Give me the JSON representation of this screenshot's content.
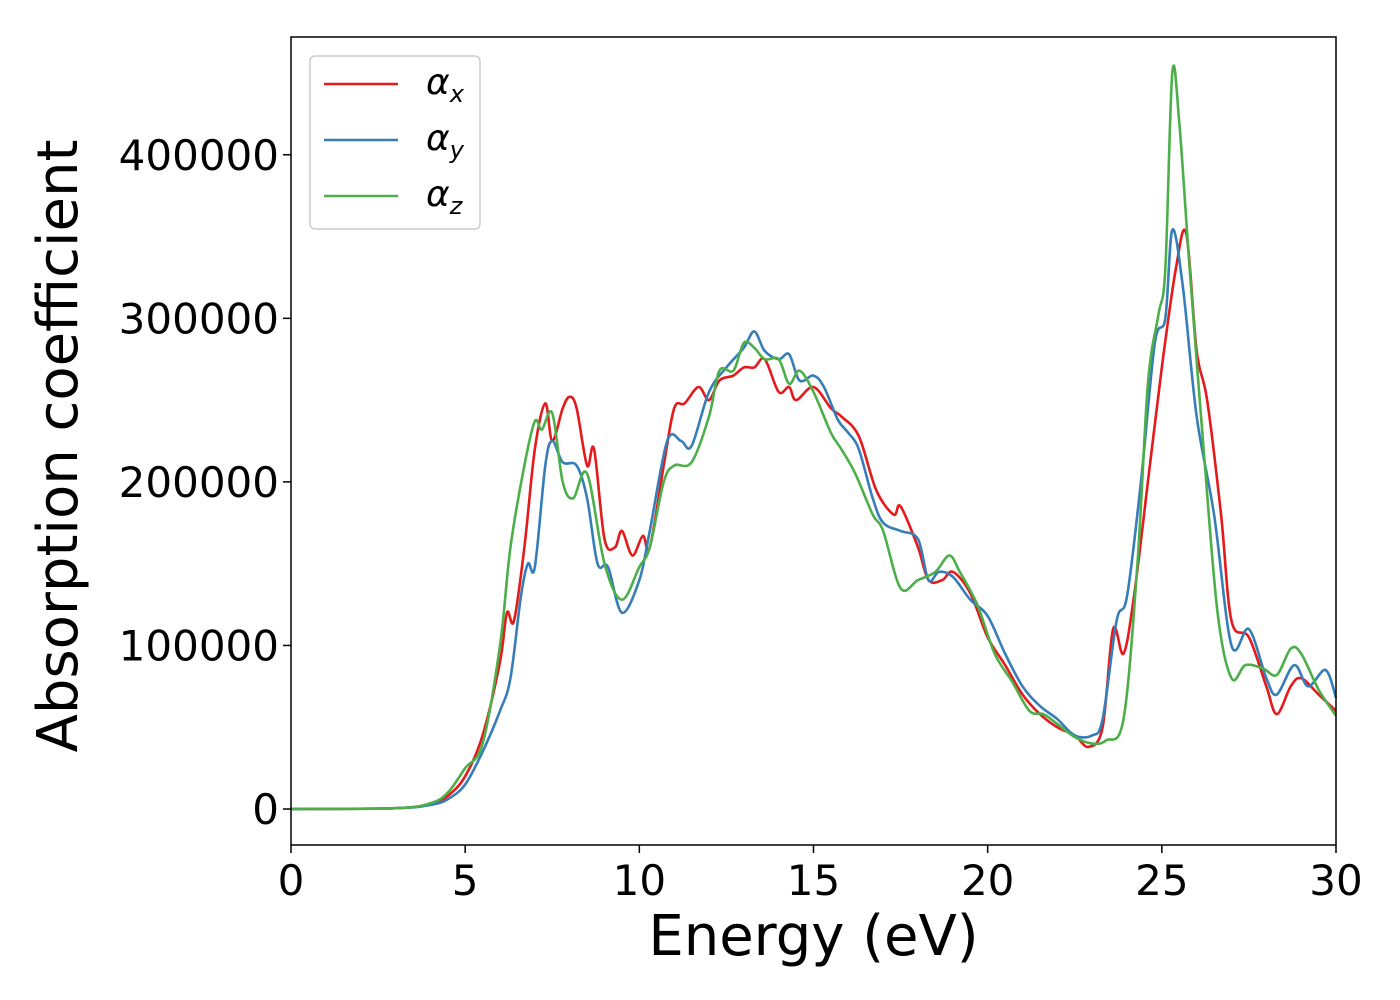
{
  "chart_data": {
    "type": "line",
    "title": "",
    "xlabel": "Energy (eV)",
    "ylabel": "Absorption coefficient",
    "xlim": [
      0,
      30
    ],
    "ylim": [
      -22000,
      472000
    ],
    "xticks": [
      0,
      5,
      10,
      15,
      20,
      25,
      30
    ],
    "xtick_labels": [
      "0",
      "5",
      "10",
      "15",
      "20",
      "25",
      "30"
    ],
    "yticks": [
      0,
      100000,
      200000,
      300000,
      400000
    ],
    "ytick_labels": [
      "0",
      "100000",
      "200000",
      "300000",
      "400000"
    ],
    "grid": false,
    "legend_position": "upper-left",
    "series": [
      {
        "name": "α",
        "subscript": "x",
        "color": "#e41a1c",
        "points": [
          [
            0,
            0
          ],
          [
            3,
            500
          ],
          [
            4,
            3000
          ],
          [
            4.5,
            8000
          ],
          [
            5,
            20000
          ],
          [
            5.5,
            45000
          ],
          [
            6,
            90000
          ],
          [
            6.2,
            120000
          ],
          [
            6.4,
            115000
          ],
          [
            6.7,
            160000
          ],
          [
            7,
            220000
          ],
          [
            7.3,
            248000
          ],
          [
            7.5,
            225000
          ],
          [
            7.8,
            245000
          ],
          [
            8,
            252000
          ],
          [
            8.2,
            245000
          ],
          [
            8.5,
            210000
          ],
          [
            8.7,
            220000
          ],
          [
            9,
            165000
          ],
          [
            9.3,
            160000
          ],
          [
            9.5,
            170000
          ],
          [
            9.8,
            155000
          ],
          [
            10.1,
            167000
          ],
          [
            10.3,
            160000
          ],
          [
            10.7,
            210000
          ],
          [
            11,
            245000
          ],
          [
            11.3,
            248000
          ],
          [
            11.7,
            258000
          ],
          [
            12,
            250000
          ],
          [
            12.3,
            262000
          ],
          [
            12.7,
            265000
          ],
          [
            13,
            270000
          ],
          [
            13.3,
            270000
          ],
          [
            13.6,
            275000
          ],
          [
            14,
            255000
          ],
          [
            14.3,
            258000
          ],
          [
            14.5,
            250000
          ],
          [
            15,
            258000
          ],
          [
            15.5,
            245000
          ],
          [
            15.8,
            240000
          ],
          [
            16.3,
            228000
          ],
          [
            16.8,
            195000
          ],
          [
            17.3,
            180000
          ],
          [
            17.5,
            185000
          ],
          [
            18,
            160000
          ],
          [
            18.3,
            140000
          ],
          [
            18.7,
            140000
          ],
          [
            19,
            145000
          ],
          [
            19.5,
            132000
          ],
          [
            20,
            105000
          ],
          [
            20.5,
            88000
          ],
          [
            21,
            70000
          ],
          [
            21.5,
            58000
          ],
          [
            22,
            50000
          ],
          [
            22.5,
            45000
          ],
          [
            22.9,
            38000
          ],
          [
            23.3,
            50000
          ],
          [
            23.6,
            110000
          ],
          [
            23.9,
            95000
          ],
          [
            24.2,
            130000
          ],
          [
            24.6,
            200000
          ],
          [
            25,
            270000
          ],
          [
            25.4,
            330000
          ],
          [
            25.7,
            352000
          ],
          [
            26,
            280000
          ],
          [
            26.3,
            250000
          ],
          [
            26.7,
            180000
          ],
          [
            27,
            115000
          ],
          [
            27.5,
            105000
          ],
          [
            28,
            75000
          ],
          [
            28.3,
            58000
          ],
          [
            28.7,
            75000
          ],
          [
            29,
            80000
          ],
          [
            29.5,
            70000
          ],
          [
            30,
            60000
          ]
        ]
      },
      {
        "name": "α",
        "subscript": "y",
        "color": "#377eb8",
        "points": [
          [
            0,
            0
          ],
          [
            3,
            500
          ],
          [
            4,
            2500
          ],
          [
            4.5,
            6000
          ],
          [
            5,
            15000
          ],
          [
            5.5,
            35000
          ],
          [
            6,
            60000
          ],
          [
            6.3,
            80000
          ],
          [
            6.6,
            130000
          ],
          [
            6.8,
            150000
          ],
          [
            7,
            148000
          ],
          [
            7.3,
            210000
          ],
          [
            7.5,
            225000
          ],
          [
            7.8,
            212000
          ],
          [
            8.2,
            210000
          ],
          [
            8.5,
            190000
          ],
          [
            8.8,
            150000
          ],
          [
            9.1,
            148000
          ],
          [
            9.5,
            120000
          ],
          [
            10,
            140000
          ],
          [
            10.3,
            170000
          ],
          [
            10.8,
            225000
          ],
          [
            11.2,
            225000
          ],
          [
            11.5,
            222000
          ],
          [
            12,
            255000
          ],
          [
            12.5,
            270000
          ],
          [
            13,
            282000
          ],
          [
            13.3,
            292000
          ],
          [
            13.6,
            280000
          ],
          [
            14,
            275000
          ],
          [
            14.3,
            278000
          ],
          [
            14.6,
            262000
          ],
          [
            15,
            265000
          ],
          [
            15.3,
            258000
          ],
          [
            15.7,
            238000
          ],
          [
            16,
            230000
          ],
          [
            16.3,
            220000
          ],
          [
            16.7,
            190000
          ],
          [
            17,
            175000
          ],
          [
            17.5,
            170000
          ],
          [
            18,
            165000
          ],
          [
            18.3,
            140000
          ],
          [
            18.6,
            145000
          ],
          [
            19,
            142000
          ],
          [
            19.5,
            128000
          ],
          [
            20,
            118000
          ],
          [
            20.5,
            95000
          ],
          [
            21,
            75000
          ],
          [
            21.5,
            63000
          ],
          [
            22,
            55000
          ],
          [
            22.5,
            45000
          ],
          [
            23,
            45000
          ],
          [
            23.3,
            55000
          ],
          [
            23.7,
            115000
          ],
          [
            24,
            130000
          ],
          [
            24.4,
            200000
          ],
          [
            24.8,
            285000
          ],
          [
            25.1,
            300000
          ],
          [
            25.3,
            354000
          ],
          [
            25.6,
            320000
          ],
          [
            26,
            240000
          ],
          [
            26.5,
            180000
          ],
          [
            27,
            100000
          ],
          [
            27.5,
            110000
          ],
          [
            28,
            80000
          ],
          [
            28.3,
            70000
          ],
          [
            28.8,
            88000
          ],
          [
            29.2,
            75000
          ],
          [
            29.7,
            85000
          ],
          [
            30,
            68000
          ]
        ]
      },
      {
        "name": "α",
        "subscript": "z",
        "color": "#4daf4a",
        "points": [
          [
            0,
            0
          ],
          [
            3,
            500
          ],
          [
            4,
            3500
          ],
          [
            4.5,
            10000
          ],
          [
            5,
            25000
          ],
          [
            5.5,
            40000
          ],
          [
            6,
            100000
          ],
          [
            6.3,
            160000
          ],
          [
            6.7,
            210000
          ],
          [
            7,
            237000
          ],
          [
            7.2,
            232000
          ],
          [
            7.5,
            242000
          ],
          [
            7.8,
            200000
          ],
          [
            8.1,
            190000
          ],
          [
            8.5,
            205000
          ],
          [
            9,
            150000
          ],
          [
            9.5,
            128000
          ],
          [
            10,
            148000
          ],
          [
            10.3,
            160000
          ],
          [
            10.7,
            200000
          ],
          [
            11,
            210000
          ],
          [
            11.5,
            212000
          ],
          [
            12,
            240000
          ],
          [
            12.3,
            268000
          ],
          [
            12.7,
            268000
          ],
          [
            13,
            285000
          ],
          [
            13.3,
            282000
          ],
          [
            13.6,
            275000
          ],
          [
            14,
            275000
          ],
          [
            14.3,
            260000
          ],
          [
            14.6,
            268000
          ],
          [
            15,
            255000
          ],
          [
            15.5,
            230000
          ],
          [
            15.8,
            220000
          ],
          [
            16.2,
            205000
          ],
          [
            16.7,
            180000
          ],
          [
            17,
            170000
          ],
          [
            17.5,
            135000
          ],
          [
            18,
            140000
          ],
          [
            18.5,
            145000
          ],
          [
            18.9,
            155000
          ],
          [
            19.2,
            145000
          ],
          [
            19.7,
            125000
          ],
          [
            20.2,
            95000
          ],
          [
            20.7,
            78000
          ],
          [
            21.2,
            60000
          ],
          [
            21.6,
            58000
          ],
          [
            22,
            52000
          ],
          [
            22.5,
            44000
          ],
          [
            23,
            40000
          ],
          [
            23.4,
            42000
          ],
          [
            23.9,
            55000
          ],
          [
            24.3,
            150000
          ],
          [
            24.6,
            260000
          ],
          [
            24.9,
            302000
          ],
          [
            25.1,
            330000
          ],
          [
            25.3,
            450000
          ],
          [
            25.5,
            420000
          ],
          [
            25.8,
            330000
          ],
          [
            26.2,
            220000
          ],
          [
            26.6,
            120000
          ],
          [
            27,
            80000
          ],
          [
            27.4,
            88000
          ],
          [
            27.9,
            86000
          ],
          [
            28.3,
            82000
          ],
          [
            28.7,
            98000
          ],
          [
            29,
            95000
          ],
          [
            29.5,
            73000
          ],
          [
            30,
            57000
          ]
        ]
      }
    ]
  }
}
